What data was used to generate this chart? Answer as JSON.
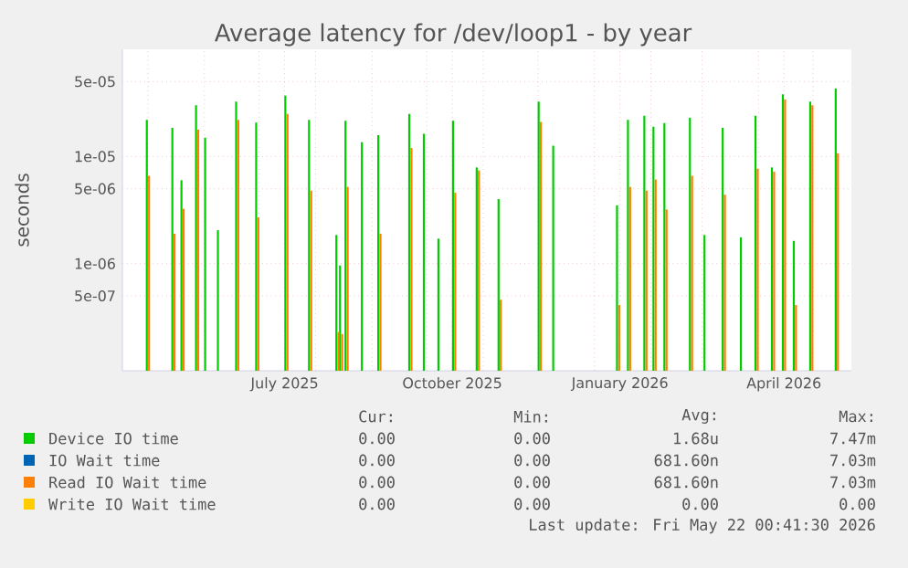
{
  "chart_data": {
    "type": "bar",
    "title": "Average latency for /dev/loop1 - by year",
    "ylabel": "seconds",
    "x": [
      "2025-05-01",
      "2025-05-15",
      "2025-05-20",
      "2025-05-28",
      "2025-06-02",
      "2025-06-09",
      "2025-06-19",
      "2025-06-30",
      "2025-07-16",
      "2025-07-29",
      "2025-08-13",
      "2025-08-15",
      "2025-08-18",
      "2025-08-27",
      "2025-09-05",
      "2025-09-22",
      "2025-09-30",
      "2025-10-08",
      "2025-10-16",
      "2025-10-29",
      "2025-11-10",
      "2025-12-02",
      "2025-12-10",
      "2026-01-14",
      "2026-01-20",
      "2026-01-29",
      "2026-02-03",
      "2026-02-09",
      "2026-02-23",
      "2026-03-03",
      "2026-03-13",
      "2026-03-23",
      "2026-03-31",
      "2026-04-09",
      "2026-04-15",
      "2026-04-21",
      "2026-04-30",
      "2026-05-14"
    ],
    "series": [
      {
        "name": "Device IO time",
        "color": "#00cc00",
        "values": [
          2.2e-05,
          1.85e-05,
          6e-06,
          3e-05,
          1.5e-05,
          2.05e-06,
          3.25e-05,
          2.07e-05,
          3.7e-05,
          2.2e-05,
          1.85e-06,
          9.6e-07,
          2.15e-05,
          1.36e-05,
          1.58e-05,
          2.5e-05,
          1.63e-05,
          1.71e-06,
          2.15e-05,
          7.9e-06,
          4e-06,
          3.25e-05,
          1.26e-05,
          3.5e-06,
          2.2e-05,
          2.4e-05,
          1.9e-05,
          2.05e-05,
          2.3e-05,
          1.85e-06,
          1.85e-05,
          1.76e-06,
          2.4e-05,
          7.9e-06,
          3.8e-05,
          1.63e-06,
          3.25e-05,
          4.3e-05
        ]
      },
      {
        "name": "IO Wait time",
        "color": "#0066b3",
        "values": [
          null,
          null,
          null,
          null,
          null,
          null,
          null,
          null,
          null,
          null,
          null,
          null,
          null,
          null,
          null,
          null,
          null,
          null,
          null,
          null,
          null,
          null,
          null,
          null,
          null,
          null,
          null,
          null,
          null,
          null,
          null,
          null,
          null,
          null,
          null,
          null,
          null,
          null
        ]
      },
      {
        "name": "Read IO Wait time",
        "color": "#ff8000",
        "values": [
          6.6e-06,
          1.9e-06,
          3.25e-06,
          1.78e-05,
          null,
          null,
          2.2e-05,
          2.7e-06,
          2.5e-05,
          4.8e-06,
          2.3e-07,
          2.2e-07,
          5.2e-06,
          null,
          1.9e-06,
          1.2e-05,
          null,
          null,
          4.6e-06,
          7.4e-06,
          4.6e-07,
          2.1e-05,
          null,
          4.1e-07,
          5.2e-06,
          4.8e-06,
          6.1e-06,
          3.2e-06,
          6.6e-06,
          null,
          4.4e-06,
          null,
          7.7e-06,
          7.2e-06,
          3.4e-05,
          4.1e-07,
          3e-05,
          1.07e-05
        ]
      },
      {
        "name": "Write IO Wait time",
        "color": "#ffcc00",
        "values": [
          null,
          null,
          null,
          null,
          null,
          null,
          null,
          null,
          null,
          null,
          null,
          null,
          null,
          null,
          null,
          null,
          null,
          null,
          null,
          null,
          null,
          null,
          null,
          null,
          null,
          null,
          null,
          null,
          null,
          null,
          null,
          null,
          null,
          null,
          null,
          null,
          null,
          null
        ]
      }
    ],
    "xlim": [
      "2025-04-17",
      "2026-05-22"
    ],
    "xticks": [
      {
        "value": "2025-05-01",
        "label": null
      },
      {
        "value": "2025-06-01",
        "label": null
      },
      {
        "value": "2025-07-01",
        "label": null
      },
      {
        "value": "2025-07-15",
        "label": "July 2025"
      },
      {
        "value": "2025-08-01",
        "label": null
      },
      {
        "value": "2025-09-01",
        "label": null
      },
      {
        "value": "2025-10-01",
        "label": null
      },
      {
        "value": "2025-10-15",
        "label": "October 2025"
      },
      {
        "value": "2025-11-01",
        "label": null
      },
      {
        "value": "2025-12-01",
        "label": null
      },
      {
        "value": "2026-01-01",
        "label": null
      },
      {
        "value": "2026-01-15",
        "label": "January 2026"
      },
      {
        "value": "2026-02-01",
        "label": null
      },
      {
        "value": "2026-03-01",
        "label": null
      },
      {
        "value": "2026-04-01",
        "label": null
      },
      {
        "value": "2026-04-15",
        "label": "April 2026"
      },
      {
        "value": "2026-05-01",
        "label": null
      }
    ],
    "ylim": [
      1e-07,
      0.0001
    ],
    "log": "y",
    "yticks": [
      {
        "value": 5e-07,
        "label": "5e-07"
      },
      {
        "value": 1e-06,
        "label": "1e-06"
      },
      {
        "value": 5e-06,
        "label": "5e-06"
      },
      {
        "value": 1e-05,
        "label": "1e-05"
      },
      {
        "value": 5e-05,
        "label": "5e-05"
      }
    ],
    "grid": true,
    "legend": "bottom",
    "annotations": [
      "Cur:",
      "Min:",
      "Avg:",
      "Max:",
      "0.00",
      "0.00",
      "1.68u",
      "7.47m",
      "0.00",
      "0.00",
      "681.60n",
      "7.03m",
      "0.00",
      "0.00",
      "681.60n",
      "7.03m",
      "0.00",
      "0.00",
      "0.00",
      "0.00",
      "Last update: Fri May 22 00:41:30 2026"
    ]
  }
}
